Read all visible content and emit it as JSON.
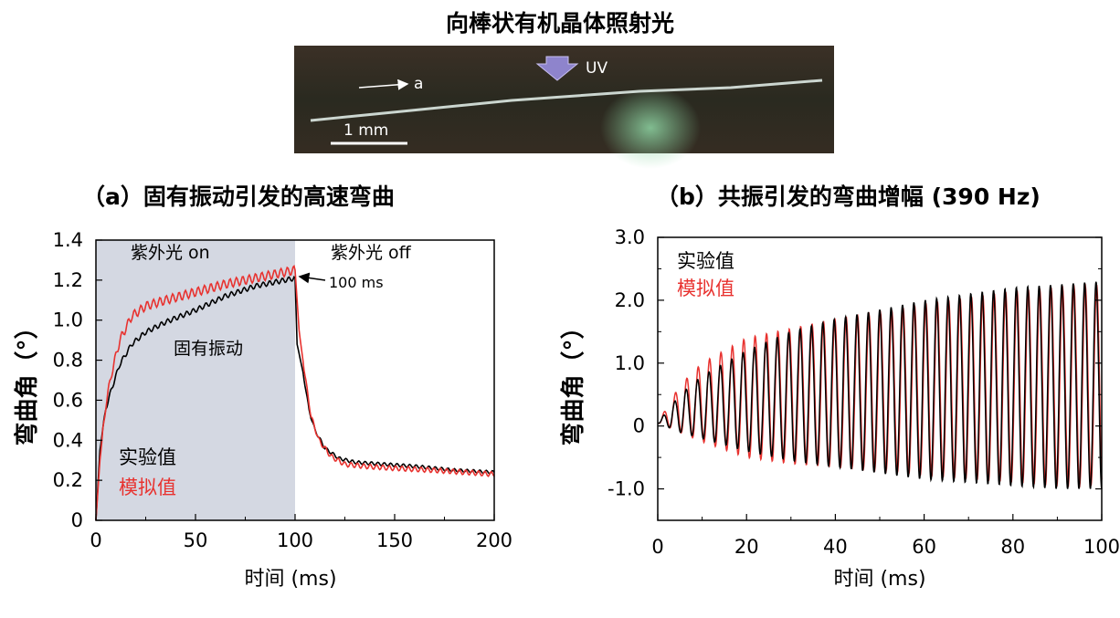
{
  "figure_title": "向棒状有机晶体照射光",
  "photo": {
    "uv_label": "UV",
    "axis_label": "a",
    "scale_label": "1 mm"
  },
  "chart_data": [
    {
      "type": "line",
      "title": "（a）固有振动引发的高速弯曲",
      "xlabel": "时间 (ms)",
      "ylabel": "弯曲角（°）",
      "xlim": [
        0,
        200
      ],
      "ylim": [
        0,
        1.4
      ],
      "xticks": [
        0,
        50,
        100,
        150,
        200
      ],
      "yticks": [
        0,
        0.2,
        0.4,
        0.6,
        0.8,
        1.0,
        1.2,
        1.4
      ],
      "xtick_labels": [
        "0",
        "50",
        "100",
        "150",
        "200"
      ],
      "ytick_labels": [
        "0",
        "0.2",
        "0.4",
        "0.6",
        "0.8",
        "1.0",
        "1.2",
        "1.4"
      ],
      "shaded_region": {
        "x": [
          0,
          100
        ],
        "color": "#d4d8e2"
      },
      "annotations": {
        "uv_on": "紫外光 on",
        "uv_off": "紫外光 off",
        "interval": "100 ms",
        "vibration": "固有振动"
      },
      "legend": {
        "position": "bottom-left"
      },
      "series": [
        {
          "name": "实验值",
          "color": "#000000",
          "points": [
            [
              0,
              0
            ],
            [
              2,
              0.35
            ],
            [
              5,
              0.56
            ],
            [
              8,
              0.66
            ],
            [
              12,
              0.78
            ],
            [
              18,
              0.88
            ],
            [
              25,
              0.94
            ],
            [
              35,
              0.99
            ],
            [
              50,
              1.05
            ],
            [
              65,
              1.12
            ],
            [
              80,
              1.17
            ],
            [
              95,
              1.2
            ],
            [
              100,
              1.21
            ],
            [
              101,
              0.88
            ],
            [
              104,
              0.74
            ],
            [
              107,
              0.55
            ],
            [
              110,
              0.45
            ],
            [
              115,
              0.36
            ],
            [
              122,
              0.31
            ],
            [
              130,
              0.29
            ],
            [
              145,
              0.28
            ],
            [
              160,
              0.27
            ],
            [
              180,
              0.25
            ],
            [
              200,
              0.24
            ]
          ]
        },
        {
          "name": "模拟值",
          "color": "#e8322f",
          "points": [
            [
              0,
              0
            ],
            [
              2,
              0.3
            ],
            [
              5,
              0.58
            ],
            [
              8,
              0.74
            ],
            [
              12,
              0.9
            ],
            [
              18,
              1.02
            ],
            [
              25,
              1.07
            ],
            [
              35,
              1.1
            ],
            [
              50,
              1.14
            ],
            [
              65,
              1.18
            ],
            [
              80,
              1.21
            ],
            [
              95,
              1.24
            ],
            [
              100,
              1.25
            ],
            [
              102,
              0.95
            ],
            [
              105,
              0.72
            ],
            [
              108,
              0.52
            ],
            [
              112,
              0.4
            ],
            [
              118,
              0.32
            ],
            [
              125,
              0.28
            ],
            [
              135,
              0.27
            ],
            [
              150,
              0.26
            ],
            [
              170,
              0.25
            ],
            [
              200,
              0.23
            ]
          ]
        }
      ]
    },
    {
      "type": "line",
      "title": "（b）共振引发的弯曲增幅 (390 Hz)",
      "xlabel": "时间 (ms)",
      "ylabel": "弯曲角（°）",
      "xlim": [
        0,
        100
      ],
      "ylim": [
        -1.5,
        3.0
      ],
      "xticks": [
        0,
        20,
        40,
        60,
        80,
        100
      ],
      "yticks": [
        -1.0,
        0,
        1.0,
        2.0,
        3.0
      ],
      "xtick_labels": [
        "0",
        "20",
        "40",
        "60",
        "80",
        "100"
      ],
      "ytick_labels": [
        "-1.0",
        "0",
        "1.0",
        "2.0",
        "3.0"
      ],
      "legend": {
        "position": "top-left"
      },
      "oscillation": {
        "frequency_hz": 390,
        "cycles": 39
      },
      "series": [
        {
          "name": "实验值",
          "color": "#000000",
          "envelope": [
            [
              0,
              0.05,
              0.05
            ],
            [
              5,
              0.5,
              -0.1
            ],
            [
              10,
              0.8,
              -0.2
            ],
            [
              20,
              1.2,
              -0.4
            ],
            [
              30,
              1.5,
              -0.55
            ],
            [
              40,
              1.7,
              -0.65
            ],
            [
              50,
              1.85,
              -0.75
            ],
            [
              60,
              2.0,
              -0.85
            ],
            [
              70,
              2.1,
              -0.9
            ],
            [
              80,
              2.2,
              -0.95
            ],
            [
              90,
              2.25,
              -1.0
            ],
            [
              100,
              2.3,
              -1.0
            ]
          ]
        },
        {
          "name": "模拟值",
          "color": "#e8322f",
          "envelope": [
            [
              0,
              0.05,
              0.05
            ],
            [
              5,
              0.65,
              -0.1
            ],
            [
              10,
              1.0,
              -0.25
            ],
            [
              20,
              1.4,
              -0.5
            ],
            [
              30,
              1.55,
              -0.6
            ],
            [
              40,
              1.7,
              -0.65
            ],
            [
              50,
              1.8,
              -0.7
            ],
            [
              60,
              1.95,
              -0.8
            ],
            [
              70,
              2.05,
              -0.85
            ],
            [
              80,
              2.15,
              -0.9
            ],
            [
              90,
              2.2,
              -0.95
            ],
            [
              100,
              2.25,
              -0.95
            ]
          ]
        }
      ]
    }
  ]
}
